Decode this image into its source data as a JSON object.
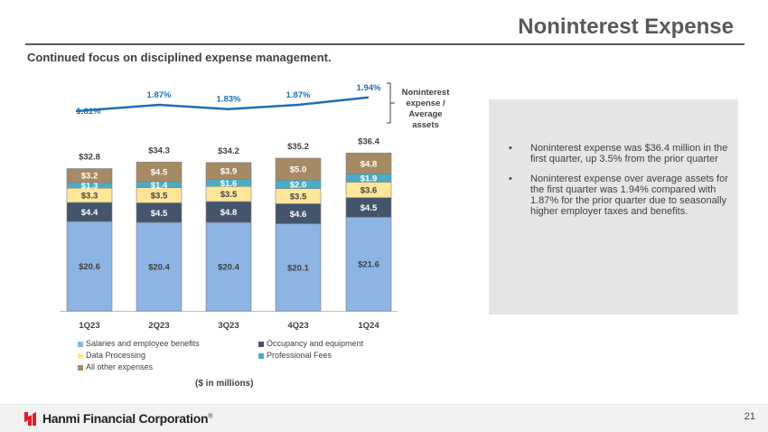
{
  "header": {
    "title": "Noninterest Expense",
    "subtitle": "Continued focus on disciplined expense management."
  },
  "chart_data": {
    "type": "bar",
    "stacked": true,
    "categories": [
      "1Q23",
      "2Q23",
      "3Q23",
      "4Q23",
      "1Q24"
    ],
    "totals": [
      "$32.8",
      "$34.3",
      "$34.2",
      "$35.2",
      "$36.4"
    ],
    "series": [
      {
        "name": "Salaries and employee benefits",
        "color": "#8db4e2",
        "values": [
          20.6,
          20.4,
          20.4,
          20.1,
          21.6
        ],
        "labels": [
          "$20.6",
          "$20.4",
          "$20.4",
          "$20.1",
          "$21.6"
        ]
      },
      {
        "name": "Occupancy and equipment",
        "color": "#44546a",
        "values": [
          4.4,
          4.5,
          4.8,
          4.6,
          4.5
        ],
        "labels": [
          "$4.4",
          "$4.5",
          "$4.8",
          "$4.6",
          "$4.5"
        ]
      },
      {
        "name": "Data Processing",
        "color": "#ffe699",
        "values": [
          3.3,
          3.5,
          3.5,
          3.5,
          3.6
        ],
        "labels": [
          "$3.3",
          "$3.5",
          "$3.5",
          "$3.5",
          "$3.6"
        ]
      },
      {
        "name": "Professional Fees",
        "color": "#4aacc6",
        "values": [
          1.3,
          1.4,
          1.6,
          2.0,
          1.9
        ],
        "labels": [
          "$1.3",
          "$1.4",
          "$1.6",
          "$2.0",
          "$1.9"
        ]
      },
      {
        "name": "All other expenses",
        "color": "#a68a64",
        "values": [
          3.2,
          4.5,
          3.9,
          5.0,
          4.8
        ],
        "labels": [
          "$3.2",
          "$4.5",
          "$3.9",
          "$5.0",
          "$4.8"
        ]
      }
    ],
    "ratio_series": {
      "name": "Noninterest expense / Average assets",
      "values": [
        1.81,
        1.87,
        1.83,
        1.87,
        1.94
      ],
      "labels": [
        "1.81%",
        "1.87%",
        "1.83%",
        "1.87%",
        "1.94%"
      ],
      "color": "#1f6fb5"
    },
    "units": "($ in millions)"
  },
  "ratio_label": [
    "Noninterest",
    "expense / Average",
    "assets"
  ],
  "bullets": [
    "Noninterest expense was $36.4 million in the first quarter, up 3.5% from the prior quarter",
    "Noninterest expense over average assets for the first quarter was 1.94% compared with 1.87% for the prior quarter due to seasonally higher employer taxes and benefits."
  ],
  "footer": {
    "company": "Hanmi Financial Corporation",
    "trademark": "®",
    "page": "21",
    "brand_color": "#e31b23"
  }
}
